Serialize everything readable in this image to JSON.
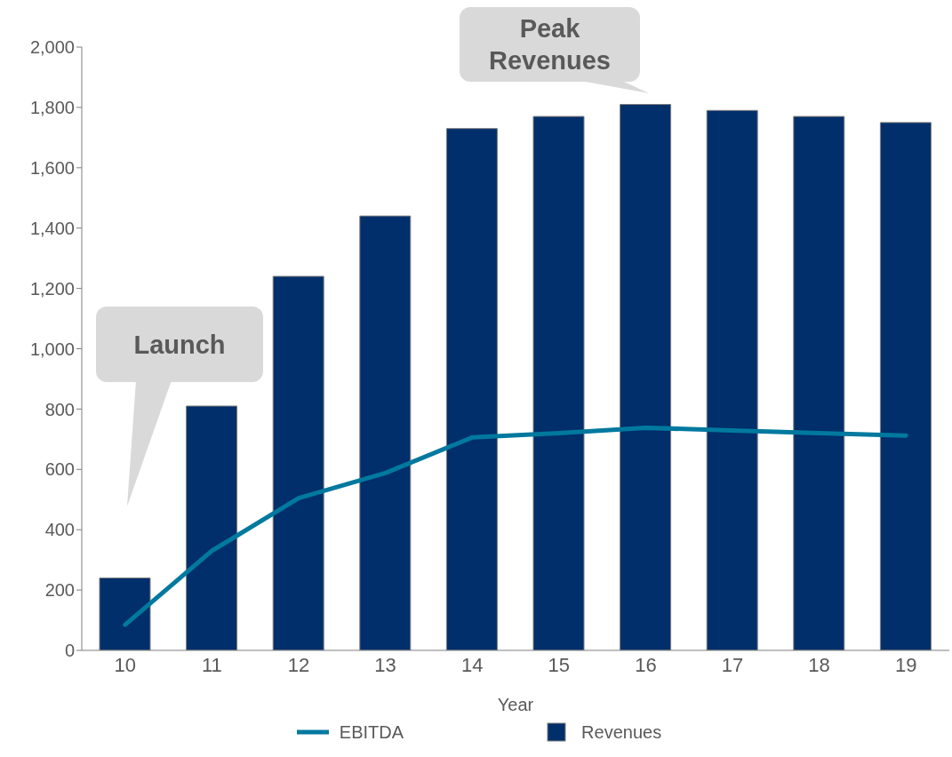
{
  "chart_data": {
    "type": "bar",
    "xlabel": "Year",
    "categories": [
      "10",
      "11",
      "12",
      "13",
      "14",
      "15",
      "16",
      "17",
      "18",
      "19"
    ],
    "series": [
      {
        "name": "EBITDA",
        "type": "line",
        "color": "#00799f",
        "values": [
          85,
          330,
          505,
          588,
          706,
          720,
          738,
          729,
          720,
          712
        ]
      },
      {
        "name": "Revenues",
        "color": "#002f6b",
        "values": [
          240,
          810,
          1240,
          1440,
          1730,
          1770,
          1810,
          1790,
          1770,
          1750
        ]
      }
    ],
    "ylim": [
      0,
      2000
    ],
    "yticks": [
      {
        "value": 0,
        "label": "0"
      },
      {
        "value": 200,
        "label": "200"
      },
      {
        "value": 400,
        "label": "400"
      },
      {
        "value": 600,
        "label": "600"
      },
      {
        "value": 800,
        "label": "800"
      },
      {
        "value": 1000,
        "label": "1,000"
      },
      {
        "value": 1200,
        "label": "1,200"
      },
      {
        "value": 1400,
        "label": "1,400"
      },
      {
        "value": 1600,
        "label": "1,600"
      },
      {
        "value": 1800,
        "label": "1,800"
      },
      {
        "value": 2000,
        "label": "2,000"
      }
    ],
    "grid": false,
    "legend": "bottom",
    "marker": "none",
    "line_style": "solid",
    "annotations": [
      "Launch",
      "Peak Revenues"
    ]
  }
}
